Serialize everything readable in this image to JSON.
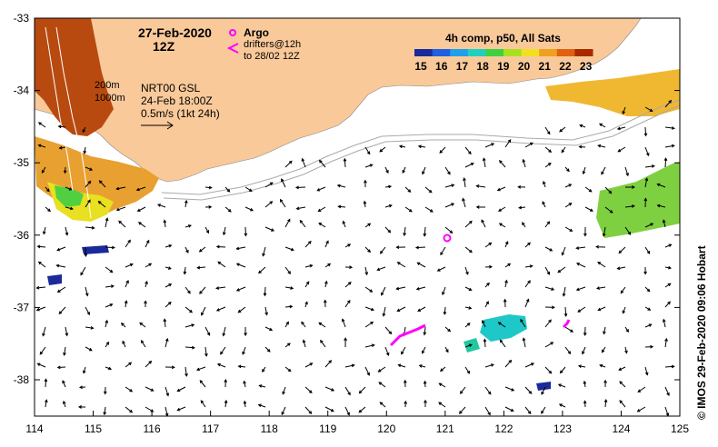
{
  "map": {
    "date": "27-Feb-2020",
    "time": "12Z",
    "product": "4h comp, p50, All Sats",
    "colorbar_ticks": [
      "15",
      "16",
      "17",
      "18",
      "19",
      "20",
      "21",
      "22",
      "23"
    ],
    "colorbar_colors": [
      "#1a2a9a",
      "#1f5fe0",
      "#1fa0e8",
      "#1fd0c0",
      "#3fd040",
      "#a8e020",
      "#f0e020",
      "#f0a020",
      "#e06010",
      "#a82a00"
    ],
    "argo_label": "Argo",
    "drifters_label": "drifters@12h",
    "drifters_to": "to 28/02 12Z",
    "contour_200": "200m",
    "contour_1000": "1000m",
    "altimetry_label": "NRT00 GSL",
    "altimetry_date": "24-Feb 18:00Z",
    "scale_label": "0.5m/s (1kt 24h)",
    "credit": "©  IMOS 29-Feb-2020 09:06 Hobart",
    "lon_ticks": [
      "114",
      "115",
      "116",
      "117",
      "118",
      "119",
      "120",
      "121",
      "122",
      "123",
      "124",
      "125"
    ],
    "lat_ticks": [
      "-33",
      "-34",
      "-35",
      "-36",
      "-37",
      "-38"
    ],
    "land_color": "#f9c99a",
    "argo_color": "#ff00ff"
  }
}
